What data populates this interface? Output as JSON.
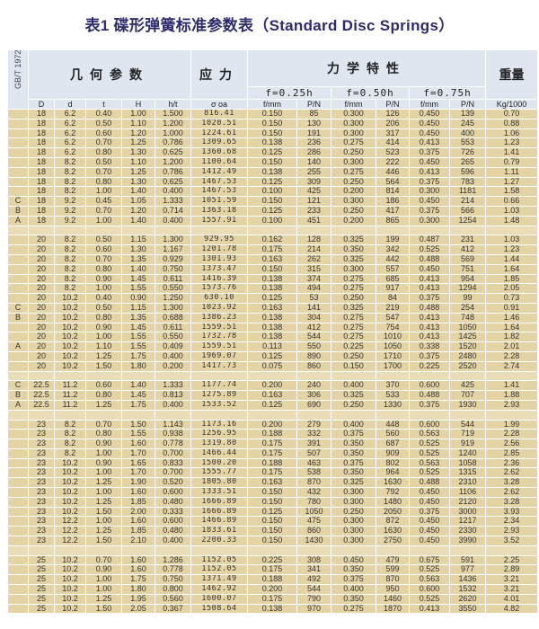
{
  "title": "表1  碟形弹簧标准参数表（Standard Disc Springs）",
  "header": {
    "standard": "GB/T 1972",
    "geometry": "几何参数",
    "stress": "应力",
    "mechanical": "力学特性",
    "weight": "重量",
    "f1": "f=0.25h",
    "f2": "f=0.50h",
    "f3": "f=0.75h",
    "columns": [
      "D",
      "d",
      "t",
      "H",
      "h/t",
      "σ oa",
      "f/mm",
      "P/N",
      "f/mm",
      "P/N",
      "f/mm",
      "P/N",
      "Kg/1000"
    ]
  },
  "rows": [
    [
      "",
      "18",
      "6.2",
      "0.40",
      "1.00",
      "1.500",
      "816.41",
      "0.150",
      "85",
      "0.300",
      "126",
      "0.450",
      "139",
      "0.70"
    ],
    [
      "",
      "18",
      "6.2",
      "0.50",
      "1.10",
      "1.200",
      "1020.51",
      "0.150",
      "130",
      "0.300",
      "206",
      "0.450",
      "245",
      "0.88"
    ],
    [
      "",
      "18",
      "6.2",
      "0.60",
      "1.20",
      "1.000",
      "1224.61",
      "0.150",
      "191",
      "0.300",
      "317",
      "0.450",
      "400",
      "1.06"
    ],
    [
      "",
      "18",
      "6.2",
      "0.70",
      "1.25",
      "0.786",
      "1309.65",
      "0.138",
      "236",
      "0.275",
      "414",
      "0.413",
      "553",
      "1.23"
    ],
    [
      "",
      "18",
      "6.2",
      "0.80",
      "1.30",
      "0.625",
      "1360.68",
      "0.125",
      "286",
      "0.250",
      "523",
      "0.375",
      "726",
      "1.41"
    ],
    [
      "",
      "18",
      "8.2",
      "0.50",
      "1.10",
      "1.200",
      "1100.64",
      "0.150",
      "140",
      "0.300",
      "222",
      "0.450",
      "265",
      "0.79"
    ],
    [
      "",
      "18",
      "8.2",
      "0.70",
      "1.25",
      "0.786",
      "1412.49",
      "0.138",
      "255",
      "0.275",
      "446",
      "0.413",
      "596",
      "1.11"
    ],
    [
      "",
      "18",
      "8.2",
      "0.80",
      "1.30",
      "0.625",
      "1467.53",
      "0.125",
      "309",
      "0.250",
      "564",
      "0.375",
      "783",
      "1.27"
    ],
    [
      "",
      "18",
      "8.2",
      "1.00",
      "1.40",
      "0.400",
      "1467.53",
      "0.100",
      "425",
      "0.200",
      "814",
      "0.300",
      "1181",
      "1.58"
    ],
    [
      "C",
      "18",
      "9.2",
      "0.45",
      "1.05",
      "1.333",
      "1051.59",
      "0.150",
      "121",
      "0.300",
      "186",
      "0.450",
      "214",
      "0.66"
    ],
    [
      "B",
      "18",
      "9.2",
      "0.70",
      "1.20",
      "0.714",
      "1363.18",
      "0.125",
      "233",
      "0.250",
      "417",
      "0.375",
      "566",
      "1.03"
    ],
    [
      "A",
      "18",
      "9.2",
      "1.00",
      "1.40",
      "0.400",
      "1557.91",
      "0.100",
      "451",
      "0.200",
      "865",
      "0.300",
      "1254",
      "1.48"
    ],
    null,
    [
      "",
      "20",
      "8.2",
      "0.50",
      "1.15",
      "1.300",
      "929.95",
      "0.162",
      "128",
      "0.325",
      "199",
      "0.487",
      "231",
      "1.03"
    ],
    [
      "",
      "20",
      "8.2",
      "0.60",
      "1.30",
      "1.167",
      "1201.78",
      "0.175",
      "214",
      "0.350",
      "342",
      "0.525",
      "412",
      "1.23"
    ],
    [
      "",
      "20",
      "8.2",
      "0.70",
      "1.35",
      "0.929",
      "1301.93",
      "0.163",
      "262",
      "0.325",
      "442",
      "0.488",
      "569",
      "1.44"
    ],
    [
      "",
      "20",
      "8.2",
      "0.80",
      "1.40",
      "0.750",
      "1373.47",
      "0.150",
      "315",
      "0.300",
      "557",
      "0.450",
      "751",
      "1.64"
    ],
    [
      "",
      "20",
      "8.2",
      "0.90",
      "1.45",
      "0.611",
      "1416.39",
      "0.138",
      "374",
      "0.275",
      "685",
      "0.413",
      "954",
      "1.85"
    ],
    [
      "",
      "20",
      "8.2",
      "1.00",
      "1.55",
      "0.550",
      "1573.76",
      "0.138",
      "494",
      "0.275",
      "917",
      "0.413",
      "1294",
      "2.05"
    ],
    [
      "",
      "20",
      "10.2",
      "0.40",
      "0.90",
      "1.250",
      "630.10",
      "0.125",
      "53",
      "0.250",
      "84",
      "0.375",
      "99",
      "0.73"
    ],
    [
      "C",
      "20",
      "10.2",
      "0.50",
      "1.15",
      "1.300",
      "1023.92",
      "0.163",
      "141",
      "0.325",
      "219",
      "0.488",
      "254",
      "0.91"
    ],
    [
      "B",
      "20",
      "10.2",
      "0.80",
      "1.35",
      "0.688",
      "1386.23",
      "0.138",
      "304",
      "0.275",
      "547",
      "0.413",
      "748",
      "1.46"
    ],
    [
      "",
      "20",
      "10.2",
      "0.90",
      "1.45",
      "0.611",
      "1559.51",
      "0.138",
      "412",
      "0.275",
      "754",
      "0.413",
      "1050",
      "1.64"
    ],
    [
      "",
      "20",
      "10.2",
      "1.00",
      "1.55",
      "0.550",
      "1732.78",
      "0.138",
      "544",
      "0.275",
      "1010",
      "0.413",
      "1425",
      "1.82"
    ],
    [
      "A",
      "20",
      "10.2",
      "1.10",
      "1.55",
      "0.409",
      "1559.51",
      "0.113",
      "550",
      "0.225",
      "1050",
      "0.338",
      "1520",
      "2.01"
    ],
    [
      "",
      "20",
      "10.2",
      "1.25",
      "1.75",
      "0.400",
      "1969.07",
      "0.125",
      "890",
      "0.250",
      "1710",
      "0.375",
      "2480",
      "2.28"
    ],
    [
      "",
      "20",
      "10.2",
      "1.50",
      "1.80",
      "0.200",
      "1417.73",
      "0.075",
      "860",
      "0.150",
      "1700",
      "0.225",
      "2520",
      "2.74"
    ],
    null,
    [
      "C",
      "22.5",
      "11.2",
      "0.60",
      "1.40",
      "1.333",
      "1177.74",
      "0.200",
      "240",
      "0.400",
      "370",
      "0.600",
      "425",
      "1.41"
    ],
    [
      "B",
      "22.5",
      "11.2",
      "0.80",
      "1.45",
      "0.813",
      "1275.89",
      "0.163",
      "306",
      "0.325",
      "533",
      "0.488",
      "707",
      "1.88"
    ],
    [
      "A",
      "22.5",
      "11.2",
      "1.25",
      "1.75",
      "0.400",
      "1533.52",
      "0.125",
      "690",
      "0.250",
      "1330",
      "0.375",
      "1930",
      "2.93"
    ],
    null,
    [
      "",
      "23",
      "8.2",
      "0.70",
      "1.50",
      "1.143",
      "1173.16",
      "0.200",
      "279",
      "0.400",
      "448",
      "0.600",
      "544",
      "1.99"
    ],
    [
      "",
      "23",
      "8.2",
      "0.80",
      "1.55",
      "0.938",
      "1256.95",
      "0.188",
      "332",
      "0.375",
      "560",
      "0.563",
      "719",
      "2.28"
    ],
    [
      "",
      "23",
      "8.2",
      "0.90",
      "1.60",
      "0.778",
      "1319.80",
      "0.175",
      "391",
      "0.350",
      "687",
      "0.525",
      "919",
      "2.56"
    ],
    [
      "",
      "23",
      "8.2",
      "1.00",
      "1.70",
      "0.700",
      "1466.44",
      "0.175",
      "507",
      "0.350",
      "909",
      "0.525",
      "1240",
      "2.85"
    ],
    [
      "",
      "23",
      "10.2",
      "0.90",
      "1.65",
      "0.833",
      "1500.20",
      "0.188",
      "463",
      "0.375",
      "802",
      "0.563",
      "1058",
      "2.36"
    ],
    [
      "",
      "23",
      "10.2",
      "1.00",
      "1.70",
      "0.700",
      "1555.77",
      "0.175",
      "538",
      "0.350",
      "964",
      "0.525",
      "1315",
      "2.62"
    ],
    [
      "",
      "23",
      "10.2",
      "1.25",
      "1.90",
      "0.520",
      "1805.80",
      "0.163",
      "870",
      "0.325",
      "1630",
      "0.488",
      "2310",
      "3.28"
    ],
    [
      "",
      "23",
      "10.2",
      "1.00",
      "1.60",
      "0.600",
      "1333.51",
      "0.150",
      "432",
      "0.300",
      "792",
      "0.450",
      "1106",
      "2.62"
    ],
    [
      "",
      "23",
      "10.2",
      "1.25",
      "1.85",
      "0.480",
      "1666.89",
      "0.150",
      "780",
      "0.300",
      "1480",
      "0.450",
      "2120",
      "3.28"
    ],
    [
      "",
      "23",
      "10.2",
      "1.50",
      "2.00",
      "0.333",
      "1666.89",
      "0.125",
      "1050",
      "0.250",
      "2050",
      "0.375",
      "3000",
      "3.93"
    ],
    [
      "",
      "23",
      "12.2",
      "1.00",
      "1.60",
      "0.600",
      "1466.89",
      "0.150",
      "475",
      "0.300",
      "872",
      "0.450",
      "1217",
      "2.34"
    ],
    [
      "",
      "23",
      "12.2",
      "1.25",
      "1.85",
      "0.480",
      "1833.61",
      "0.150",
      "860",
      "0.300",
      "1630",
      "0.450",
      "2330",
      "2.93"
    ],
    [
      "",
      "23",
      "12.2",
      "1.50",
      "2.10",
      "0.400",
      "2200.33",
      "0.150",
      "1430",
      "0.300",
      "2750",
      "0.450",
      "3990",
      "3.52"
    ],
    null,
    [
      "",
      "25",
      "10.2",
      "0.70",
      "1.60",
      "1.286",
      "1152.05",
      "0.225",
      "308",
      "0.450",
      "479",
      "0.675",
      "591",
      "2.25"
    ],
    [
      "",
      "25",
      "10.2",
      "0.90",
      "1.60",
      "0.778",
      "1152.05",
      "0.175",
      "341",
      "0.350",
      "599",
      "0.525",
      "977",
      "2.89"
    ],
    [
      "",
      "25",
      "10.2",
      "1.00",
      "1.75",
      "0.750",
      "1371.49",
      "0.188",
      "492",
      "0.375",
      "870",
      "0.563",
      "1436",
      "3.21"
    ],
    [
      "",
      "25",
      "10.2",
      "1.00",
      "1.80",
      "0.800",
      "1462.92",
      "0.200",
      "544",
      "0.400",
      "950",
      "0.600",
      "1532",
      "3.21"
    ],
    [
      "",
      "25",
      "10.2",
      "1.25",
      "1.95",
      "0.560",
      "1600.07",
      "0.175",
      "790",
      "0.350",
      "1460",
      "0.525",
      "2620",
      "4.01"
    ],
    [
      "",
      "25",
      "10.2",
      "1.50",
      "2.05",
      "0.367",
      "1508.64",
      "0.138",
      "970",
      "0.275",
      "1870",
      "0.413",
      "3550",
      "4.82"
    ]
  ]
}
